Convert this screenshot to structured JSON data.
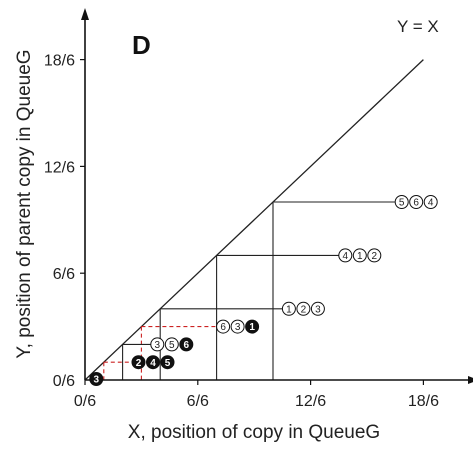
{
  "panel_label": "D",
  "diagonal_label": "Y = X",
  "x_axis_title": "X, position of copy in QueueG",
  "y_axis_title": "Y, position of parent copy in QueueG",
  "chart_data": {
    "type": "diagram",
    "x_range": [
      0,
      20
    ],
    "y_range": [
      0,
      20
    ],
    "x_ticks": [
      {
        "value": 0,
        "label": "0/6"
      },
      {
        "value": 6,
        "label": "6/6"
      },
      {
        "value": 12,
        "label": "12/6"
      },
      {
        "value": 18,
        "label": "18/6"
      }
    ],
    "y_ticks": [
      {
        "value": 0,
        "label": "0/6"
      },
      {
        "value": 6,
        "label": "6/6"
      },
      {
        "value": 12,
        "label": "12/6"
      },
      {
        "value": 18,
        "label": "18/6"
      }
    ],
    "staircase": [
      {
        "x": 4,
        "y": 4,
        "dashed": false,
        "markers": [
          {
            "text": "1",
            "filled": false
          },
          {
            "text": "2",
            "filled": false
          },
          {
            "text": "3",
            "filled": false
          }
        ]
      },
      {
        "x": 7,
        "y": 7,
        "dashed": false,
        "markers": [
          {
            "text": "4",
            "filled": false
          },
          {
            "text": "1",
            "filled": false
          },
          {
            "text": "2",
            "filled": false
          }
        ]
      },
      {
        "x": 10,
        "y": 10,
        "dashed": false,
        "markers": [
          {
            "text": "5",
            "filled": false
          },
          {
            "text": "6",
            "filled": false
          },
          {
            "text": "4",
            "filled": false
          }
        ]
      },
      {
        "x": 3,
        "y": 3,
        "dashed": true,
        "markers": [
          {
            "text": "6",
            "filled": false
          },
          {
            "text": "3",
            "filled": false
          },
          {
            "text": "1",
            "filled": true
          }
        ]
      },
      {
        "x": 2,
        "y": 2,
        "dashed": false,
        "markers": [
          {
            "text": "3",
            "filled": false
          },
          {
            "text": "5",
            "filled": false
          },
          {
            "text": "6",
            "filled": true
          }
        ]
      },
      {
        "x": 1,
        "y": 1,
        "dashed": true,
        "markers": [
          {
            "text": "2",
            "filled": true
          },
          {
            "text": "4",
            "filled": true
          },
          {
            "text": "5",
            "filled": true
          }
        ]
      }
    ],
    "origin_marker": {
      "text": "3",
      "filled": true
    },
    "colors": {
      "axis": "#111111",
      "line": "#222222",
      "dashed": "#cc2222",
      "filled_marker": "#111111"
    }
  }
}
